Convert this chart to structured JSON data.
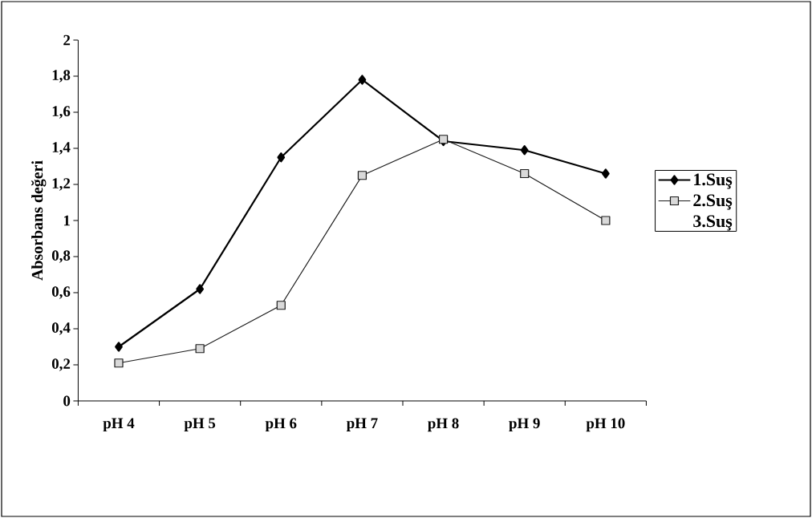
{
  "chart_data": {
    "type": "line",
    "ylabel": "Absorbans değeri",
    "categories": [
      "pH 4",
      "pH 5",
      "pH 6",
      "pH 7",
      "pH 8",
      "pH 9",
      "pH 10"
    ],
    "series": [
      {
        "name": "1.Suş",
        "color": "#000000",
        "marker": "diamond",
        "values": [
          0.3,
          0.62,
          1.35,
          1.78,
          1.44,
          1.39,
          1.26
        ]
      },
      {
        "name": "2.Suş",
        "color": "#1a1a1a",
        "marker": "square",
        "values": [
          0.21,
          0.29,
          0.53,
          1.25,
          1.45,
          1.26,
          1.0
        ]
      },
      {
        "name": "3.Suş",
        "values": [
          null,
          null,
          null,
          null,
          null,
          null,
          null
        ]
      }
    ],
    "ylim": [
      0,
      2
    ],
    "yticks": [
      0,
      {
        "value": 0.2,
        "label": "0,2"
      },
      {
        "value": 0.4,
        "label": "0,4"
      },
      {
        "value": 0.6,
        "label": "0,6"
      },
      {
        "value": 0.8,
        "label": "0,8"
      },
      1,
      {
        "value": 1.2,
        "label": "1,2"
      },
      {
        "value": 1.4,
        "label": "1,4"
      },
      {
        "value": 1.6,
        "label": "1,6"
      },
      {
        "value": 1.8,
        "label": "1,8"
      },
      2
    ],
    "grid": false,
    "legend": "right",
    "line_style": "solid"
  }
}
